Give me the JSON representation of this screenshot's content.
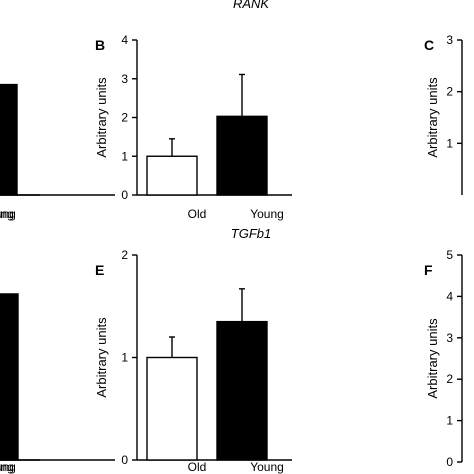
{
  "colors": {
    "open_bar": "#ffffff",
    "filled_bar": "#000000",
    "axis": "#000000"
  },
  "chart_data": [
    {
      "panel": "A",
      "panel_visible": false,
      "title": "",
      "type": "bar",
      "ylabel": "",
      "categories": [
        "",
        "Young"
      ],
      "values": [
        null,
        2.85
      ],
      "errors": [
        null,
        null
      ],
      "ylim": [
        0,
        4
      ],
      "yticks": [
        0,
        1,
        2,
        3,
        4
      ],
      "fills": [
        "#ffffff",
        "#000000"
      ],
      "grid": false
    },
    {
      "panel": "B",
      "panel_visible": true,
      "title": "RANK",
      "type": "bar",
      "ylabel": "Arbitrary units",
      "categories": [
        "Old",
        "Young"
      ],
      "values": [
        1.0,
        2.03
      ],
      "errors": [
        0.45,
        1.08
      ],
      "ylim": [
        0,
        4
      ],
      "yticks": [
        0,
        1,
        2,
        3,
        4
      ],
      "fills": [
        "#ffffff",
        "#000000"
      ],
      "grid": false
    },
    {
      "panel": "C",
      "panel_visible": true,
      "title": "",
      "type": "bar",
      "ylabel": "Arbitrary units",
      "categories": [],
      "values": [],
      "errors": [],
      "ylim": [
        0,
        3
      ],
      "yticks": [
        1,
        2,
        3
      ],
      "fills": [],
      "grid": false
    },
    {
      "panel": "D",
      "panel_visible": false,
      "title": "",
      "type": "bar",
      "ylabel": "",
      "categories": [
        "",
        "Young"
      ],
      "values": [
        null,
        1.62
      ],
      "errors": [
        null,
        null
      ],
      "ylim": [
        0,
        2
      ],
      "yticks": [
        0,
        1,
        2
      ],
      "fills": [
        "#ffffff",
        "#000000"
      ],
      "grid": false
    },
    {
      "panel": "E",
      "panel_visible": true,
      "title": "TGFb1",
      "type": "bar",
      "ylabel": "Arbitrary units",
      "categories": [
        "Old",
        "Young"
      ],
      "values": [
        1.0,
        1.35
      ],
      "errors": [
        0.2,
        0.32
      ],
      "ylim": [
        0,
        2
      ],
      "yticks": [
        0,
        1,
        2
      ],
      "fills": [
        "#ffffff",
        "#000000"
      ],
      "grid": false
    },
    {
      "panel": "F",
      "panel_visible": true,
      "title": "",
      "type": "bar",
      "ylabel": "Arbitrary units",
      "categories": [],
      "values": [],
      "errors": [],
      "ylim": [
        0,
        5
      ],
      "yticks": [
        0,
        1,
        2,
        3,
        4,
        5
      ],
      "fills": [],
      "grid": false
    }
  ]
}
